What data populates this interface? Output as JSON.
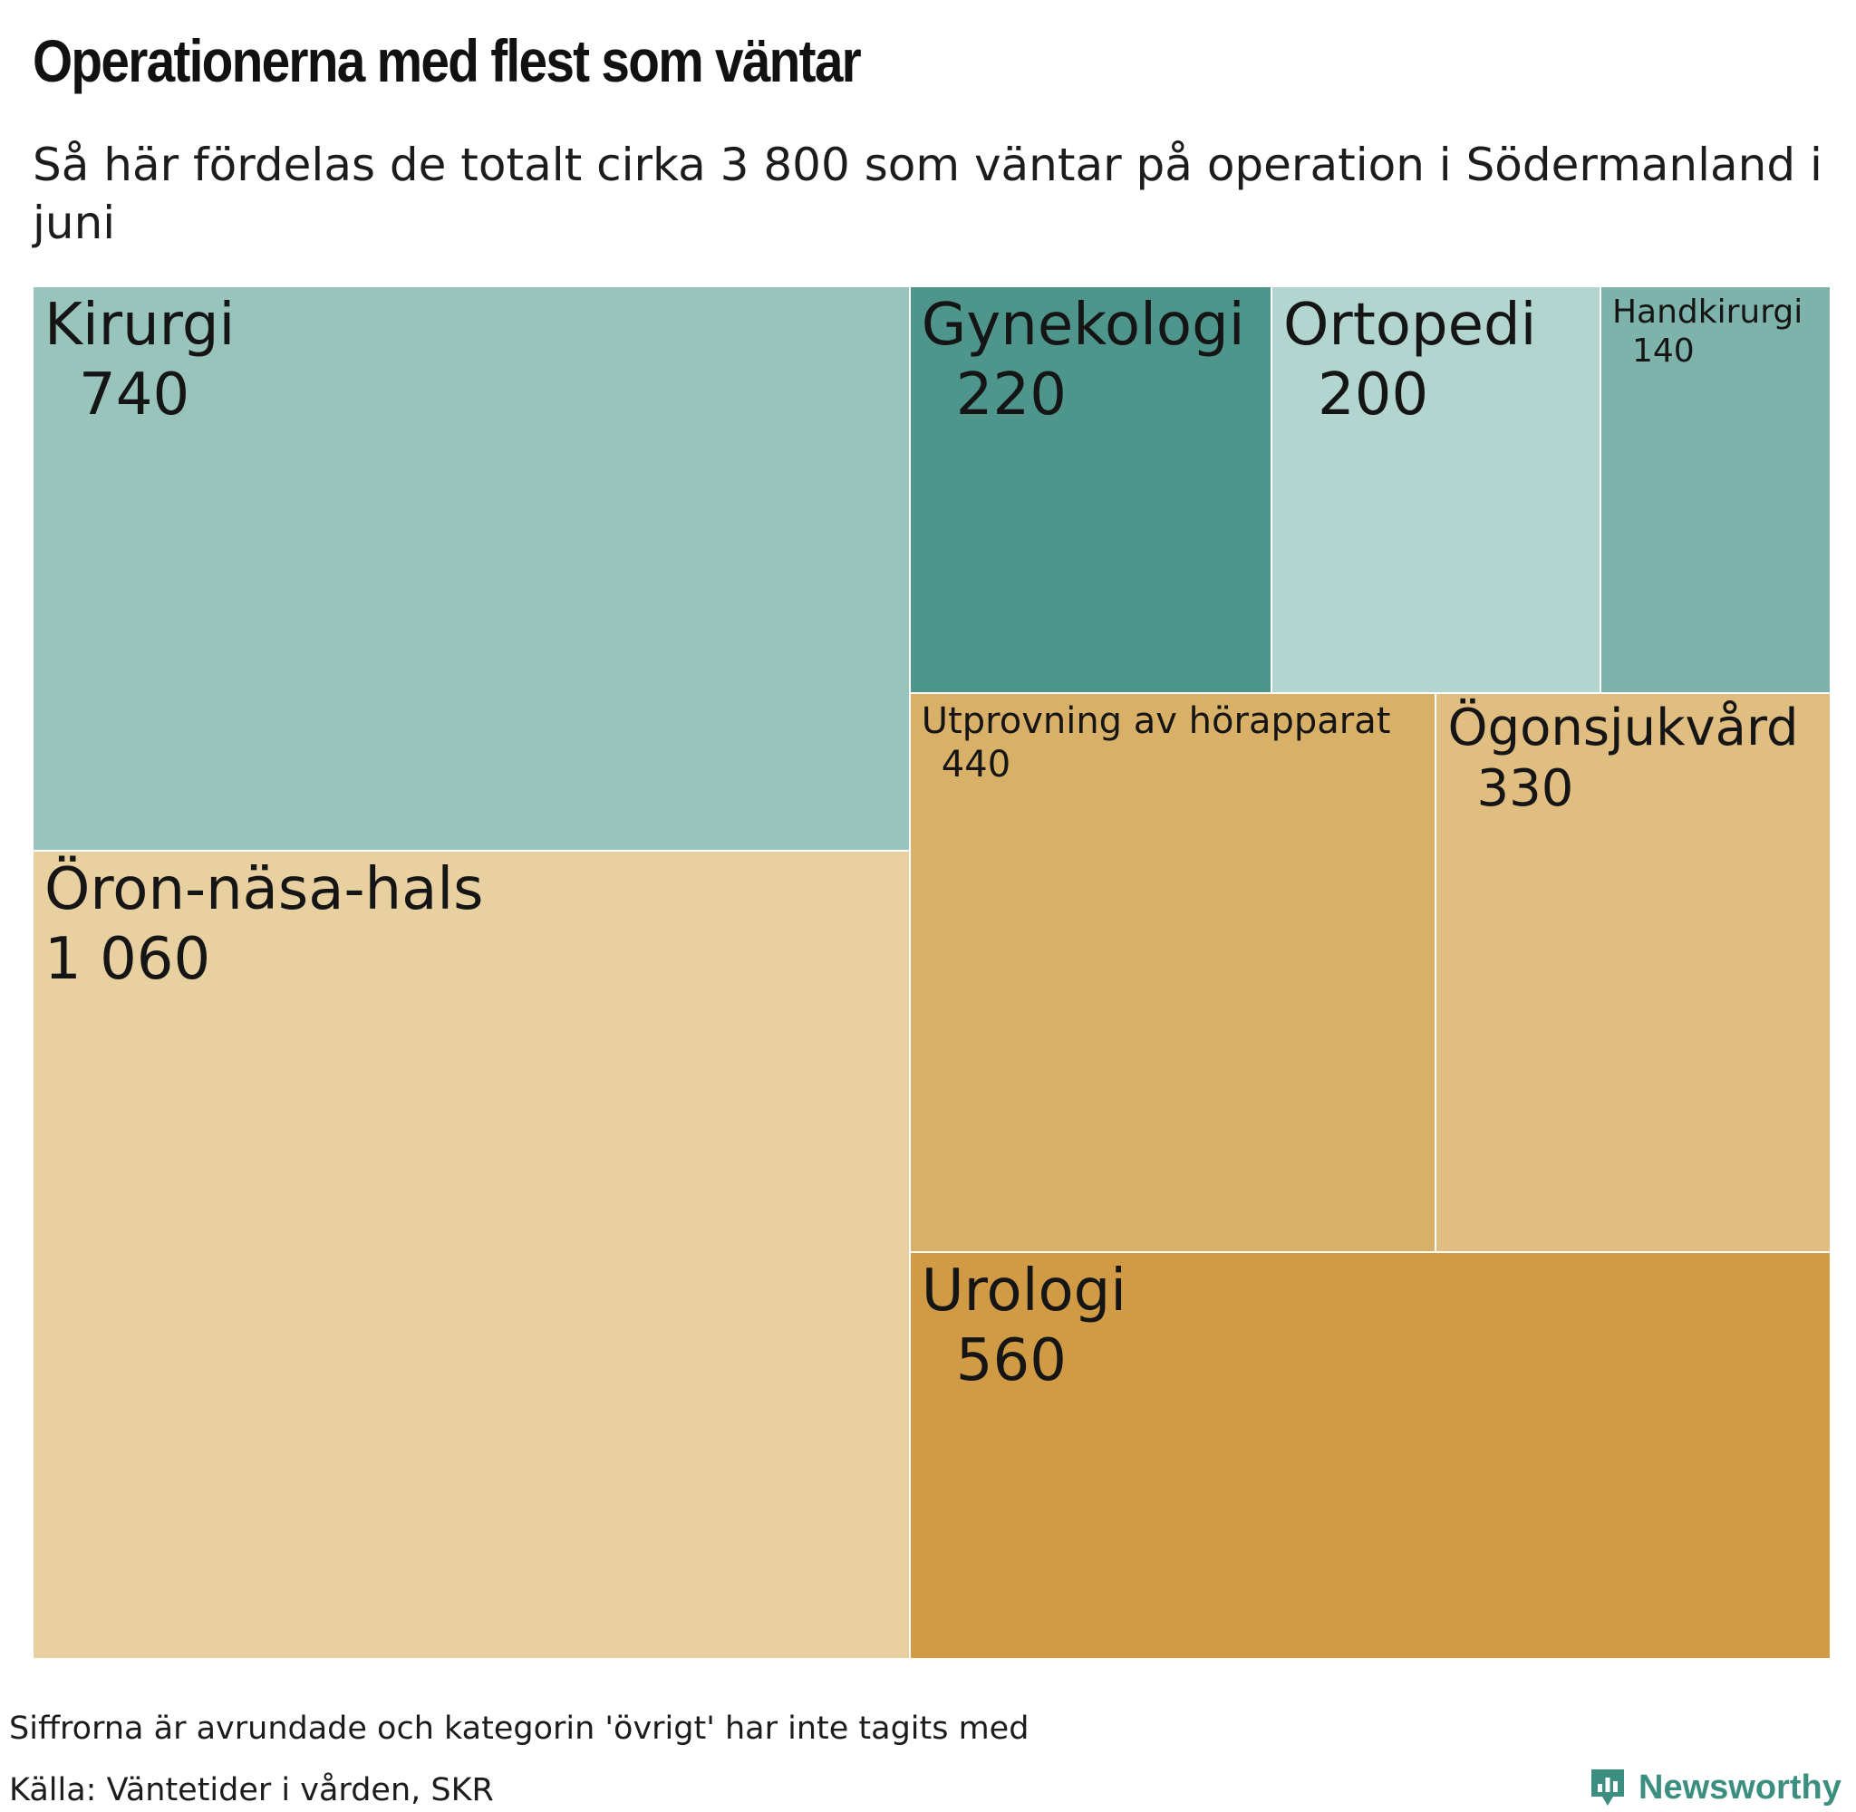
{
  "title": "Operationerna med flest som väntar",
  "subtitle": "Så här fördelas de totalt cirka 3 800 som väntar på operation i Södermanland i juni",
  "note": "Siffrorna är avrundade och kategorin 'övrigt' har inte tagits med",
  "source": "Källa: Väntetider i vården, SKR",
  "brand": {
    "name": "Newsworthy",
    "icon": "newsworthy-logo-icon",
    "color": "#3c8f80"
  },
  "chart_data": {
    "type": "treemap",
    "title": "Operationerna med flest som väntar",
    "subtitle": "Så här fördelas de totalt cirka 3 800 som väntar på operation i Södermanland i juni",
    "items": [
      {
        "name": "Öron-näsa-hals",
        "value": 1060,
        "label": "1 060",
        "color": "#e8d0a0"
      },
      {
        "name": "Kirurgi",
        "value": 740,
        "label": "740",
        "color": "#98c4bc"
      },
      {
        "name": "Urologi",
        "value": 560,
        "label": "560",
        "color": "#d19b45"
      },
      {
        "name": "Utprovning av hörapparat",
        "value": 440,
        "label": "440",
        "color": "#d9b067"
      },
      {
        "name": "Ögonsjukvård",
        "value": 330,
        "label": "330",
        "color": "#e0bd80"
      },
      {
        "name": "Gynekologi",
        "value": 220,
        "label": "220",
        "color": "#4e968b"
      },
      {
        "name": "Ortopedi",
        "value": 200,
        "label": "200",
        "color": "#b2d6cf"
      },
      {
        "name": "Handkirurgi",
        "value": 140,
        "label": "140",
        "color": "#7db3ab"
      }
    ]
  }
}
